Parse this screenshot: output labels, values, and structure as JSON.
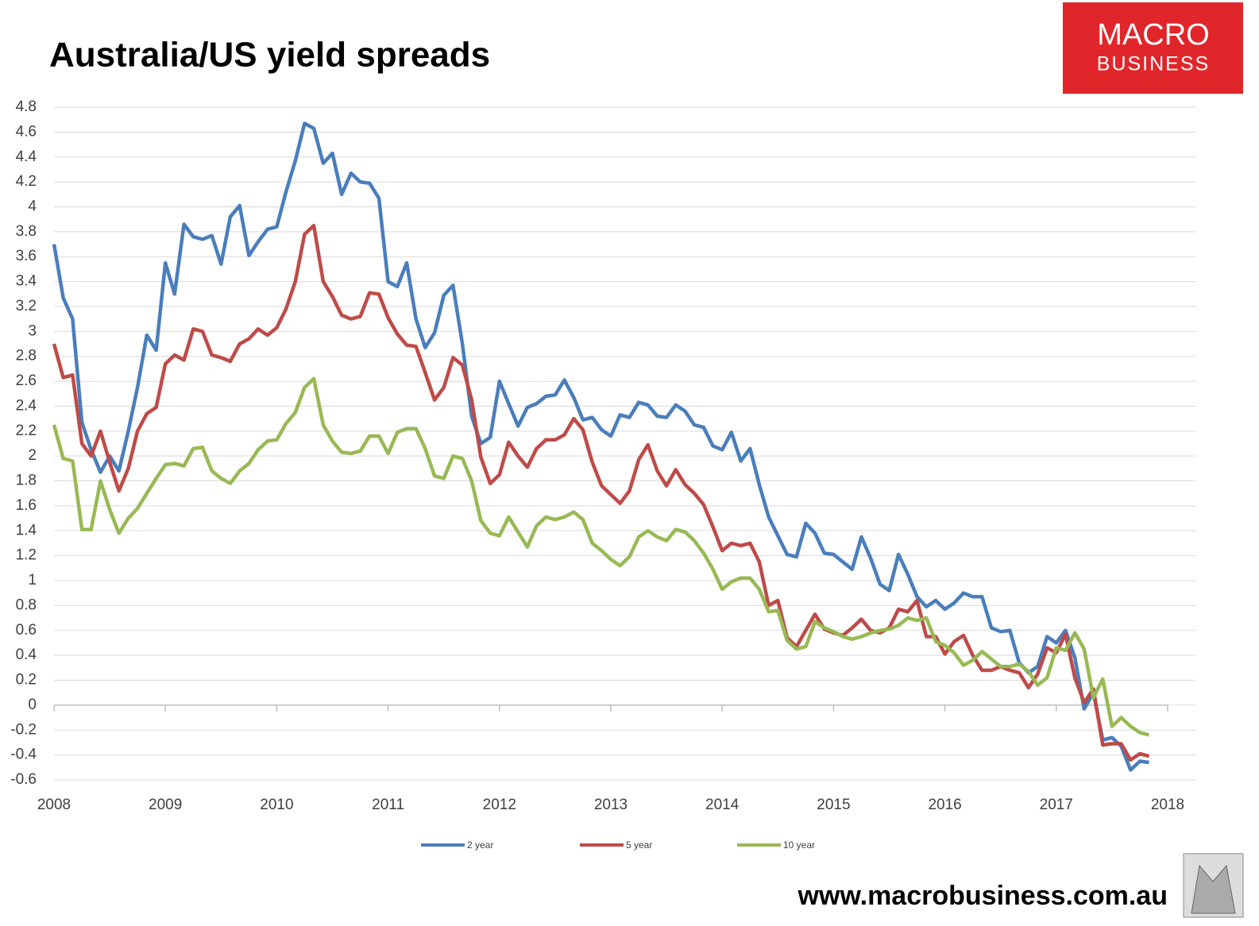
{
  "chart_data": {
    "type": "line",
    "title": "Australia/US yield spreads",
    "x": [
      2008,
      2008.083,
      2008.167,
      2008.25,
      2008.333,
      2008.417,
      2008.5,
      2008.583,
      2008.667,
      2008.75,
      2008.833,
      2008.917,
      2009,
      2009.083,
      2009.167,
      2009.25,
      2009.333,
      2009.417,
      2009.5,
      2009.583,
      2009.667,
      2009.75,
      2009.833,
      2009.917,
      2010,
      2010.083,
      2010.167,
      2010.25,
      2010.333,
      2010.417,
      2010.5,
      2010.583,
      2010.667,
      2010.75,
      2010.833,
      2010.917,
      2011,
      2011.083,
      2011.167,
      2011.25,
      2011.333,
      2011.417,
      2011.5,
      2011.583,
      2011.667,
      2011.75,
      2011.833,
      2011.917,
      2012,
      2012.083,
      2012.167,
      2012.25,
      2012.333,
      2012.417,
      2012.5,
      2012.583,
      2012.667,
      2012.75,
      2012.833,
      2012.917,
      2013,
      2013.083,
      2013.167,
      2013.25,
      2013.333,
      2013.417,
      2013.5,
      2013.583,
      2013.667,
      2013.75,
      2013.833,
      2013.917,
      2014,
      2014.083,
      2014.167,
      2014.25,
      2014.333,
      2014.417,
      2014.5,
      2014.583,
      2014.667,
      2014.75,
      2014.833,
      2014.917,
      2015,
      2015.083,
      2015.167,
      2015.25,
      2015.333,
      2015.417,
      2015.5,
      2015.583,
      2015.667,
      2015.75,
      2015.833,
      2015.917,
      2016,
      2016.083,
      2016.167,
      2016.25,
      2016.333,
      2016.417,
      2016.5,
      2016.583,
      2016.667,
      2016.75,
      2016.833,
      2016.917,
      2017,
      2017.083,
      2017.167,
      2017.25,
      2017.333,
      2017.417,
      2017.5,
      2017.583,
      2017.667,
      2017.75,
      2017.833
    ],
    "series": [
      {
        "name": "2 year",
        "color": "#4a7ebb",
        "values": [
          3.7,
          3.27,
          3.1,
          2.27,
          2.05,
          1.87,
          2.0,
          1.88,
          2.2,
          2.55,
          2.97,
          2.85,
          3.55,
          3.3,
          3.86,
          3.76,
          3.74,
          3.77,
          3.54,
          3.92,
          4.01,
          3.61,
          3.72,
          3.82,
          3.84,
          4.12,
          4.37,
          4.67,
          4.63,
          4.35,
          4.43,
          4.1,
          4.27,
          4.2,
          4.19,
          4.07,
          3.4,
          3.36,
          3.55,
          3.1,
          2.87,
          2.99,
          3.29,
          3.37,
          2.9,
          2.32,
          2.1,
          2.15,
          2.6,
          2.42,
          2.24,
          2.39,
          2.42,
          2.48,
          2.49,
          2.61,
          2.47,
          2.29,
          2.31,
          2.21,
          2.16,
          2.33,
          2.31,
          2.43,
          2.41,
          2.32,
          2.31,
          2.41,
          2.36,
          2.25,
          2.23,
          2.08,
          2.05,
          2.19,
          1.96,
          2.06,
          1.77,
          1.51,
          1.36,
          1.21,
          1.19,
          1.46,
          1.38,
          1.22,
          1.21,
          1.15,
          1.09,
          1.35,
          1.18,
          0.97,
          0.92,
          1.21,
          1.05,
          0.87,
          0.79,
          0.84,
          0.77,
          0.82,
          0.9,
          0.87,
          0.87,
          0.62,
          0.59,
          0.6,
          0.34,
          0.26,
          0.31,
          0.55,
          0.5,
          0.6,
          0.38,
          -0.03,
          0.1,
          -0.28,
          -0.26,
          -0.33,
          -0.52,
          -0.45,
          -0.46
        ]
      },
      {
        "name": "5 year",
        "color": "#be4b48",
        "values": [
          2.9,
          2.63,
          2.65,
          2.1,
          2.0,
          2.2,
          1.95,
          1.72,
          1.9,
          2.2,
          2.34,
          2.39,
          2.74,
          2.81,
          2.77,
          3.02,
          3.0,
          2.81,
          2.79,
          2.76,
          2.9,
          2.94,
          3.02,
          2.97,
          3.03,
          3.18,
          3.4,
          3.78,
          3.85,
          3.4,
          3.28,
          3.13,
          3.1,
          3.12,
          3.31,
          3.3,
          3.11,
          2.98,
          2.89,
          2.88,
          2.67,
          2.45,
          2.55,
          2.79,
          2.73,
          2.45,
          1.99,
          1.78,
          1.85,
          2.11,
          2.0,
          1.91,
          2.06,
          2.13,
          2.13,
          2.17,
          2.3,
          2.21,
          1.95,
          1.76,
          1.69,
          1.62,
          1.72,
          1.97,
          2.09,
          1.88,
          1.76,
          1.89,
          1.77,
          1.7,
          1.61,
          1.43,
          1.24,
          1.3,
          1.28,
          1.3,
          1.15,
          0.8,
          0.84,
          0.54,
          0.47,
          0.6,
          0.73,
          0.61,
          0.58,
          0.56,
          0.62,
          0.69,
          0.6,
          0.58,
          0.62,
          0.77,
          0.75,
          0.84,
          0.55,
          0.55,
          0.41,
          0.51,
          0.56,
          0.4,
          0.28,
          0.28,
          0.31,
          0.28,
          0.26,
          0.14,
          0.25,
          0.46,
          0.42,
          0.57,
          0.22,
          0.02,
          0.13,
          -0.32,
          -0.31,
          -0.31,
          -0.44,
          -0.39,
          -0.41
        ]
      },
      {
        "name": "10 year",
        "color": "#98b954",
        "values": [
          2.25,
          1.98,
          1.96,
          1.41,
          1.41,
          1.8,
          1.57,
          1.38,
          1.5,
          1.58,
          1.7,
          1.82,
          1.93,
          1.94,
          1.92,
          2.06,
          2.07,
          1.88,
          1.82,
          1.78,
          1.88,
          1.94,
          2.05,
          2.12,
          2.13,
          2.26,
          2.35,
          2.55,
          2.62,
          2.25,
          2.12,
          2.03,
          2.02,
          2.04,
          2.16,
          2.16,
          2.02,
          2.19,
          2.22,
          2.22,
          2.06,
          1.84,
          1.82,
          2.0,
          1.98,
          1.8,
          1.48,
          1.38,
          1.36,
          1.51,
          1.39,
          1.27,
          1.44,
          1.51,
          1.49,
          1.51,
          1.55,
          1.49,
          1.3,
          1.24,
          1.17,
          1.12,
          1.19,
          1.35,
          1.4,
          1.35,
          1.32,
          1.41,
          1.39,
          1.32,
          1.22,
          1.09,
          0.93,
          0.99,
          1.02,
          1.02,
          0.93,
          0.75,
          0.76,
          0.52,
          0.45,
          0.47,
          0.67,
          0.62,
          0.59,
          0.55,
          0.53,
          0.55,
          0.58,
          0.6,
          0.61,
          0.64,
          0.7,
          0.68,
          0.7,
          0.51,
          0.48,
          0.42,
          0.32,
          0.36,
          0.43,
          0.37,
          0.31,
          0.31,
          0.33,
          0.27,
          0.16,
          0.22,
          0.46,
          0.44,
          0.58,
          0.45,
          0.06,
          0.21,
          -0.17,
          -0.1,
          -0.17,
          -0.22,
          -0.24
        ]
      }
    ],
    "xlim": [
      2008,
      2018
    ],
    "xticks": [
      2008,
      2009,
      2010,
      2011,
      2012,
      2013,
      2014,
      2015,
      2016,
      2017,
      2018
    ],
    "ylim": [
      -0.6,
      4.8
    ],
    "yticks": [
      -0.6,
      -0.4,
      -0.2,
      0,
      0.2,
      0.4,
      0.6,
      0.8,
      1,
      1.2,
      1.4,
      1.6,
      1.8,
      2,
      2.2,
      2.4,
      2.6,
      2.8,
      3,
      3.2,
      3.4,
      3.6,
      3.8,
      4,
      4.2,
      4.4,
      4.6,
      4.8
    ],
    "grid": true,
    "legend": "bottom"
  },
  "logo": {
    "line1": "MACRO",
    "line2": "BUSINESS"
  },
  "footer": "www.macrobusiness.com.au"
}
